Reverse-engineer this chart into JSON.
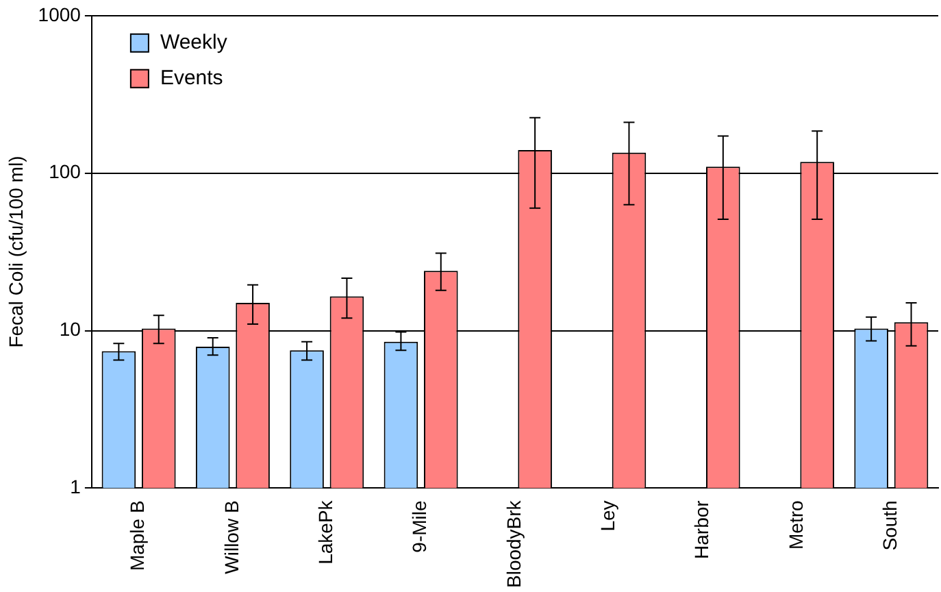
{
  "chart_data": {
    "type": "bar",
    "ylabel": "Fecal Coli (cfu/100 ml)",
    "categories": [
      "Maple B",
      "Willow B",
      "LakePk",
      "9-Mile",
      "BloodyBrk",
      "Ley",
      "Harbor",
      "Metro",
      "South"
    ],
    "series": [
      {
        "name": "Weekly",
        "color": "#99ccff",
        "values": [
          7.4,
          7.9,
          7.5,
          8.5,
          null,
          null,
          null,
          null,
          10.3
        ],
        "errors": [
          [
            6.5,
            8.3
          ],
          [
            7,
            9
          ],
          [
            6.5,
            8.5
          ],
          [
            7.5,
            9.8
          ],
          null,
          null,
          null,
          null,
          [
            8.6,
            12.2
          ]
        ]
      },
      {
        "name": "Events",
        "color": "#ff8080",
        "values": [
          10.3,
          15,
          16.5,
          24,
          140,
          135,
          110,
          118,
          11.3
        ],
        "errors": [
          [
            8.3,
            12.5
          ],
          [
            11,
            19.5
          ],
          [
            12,
            21.5
          ],
          [
            18,
            31
          ],
          [
            60,
            225
          ],
          [
            63,
            210
          ],
          [
            51,
            172
          ],
          [
            51,
            185
          ],
          [
            8,
            15
          ]
        ]
      }
    ],
    "log": "y",
    "ylim": [
      1,
      1000
    ],
    "yticks": [
      1,
      10,
      100,
      1000
    ],
    "grid": "y",
    "legend": "top left"
  }
}
